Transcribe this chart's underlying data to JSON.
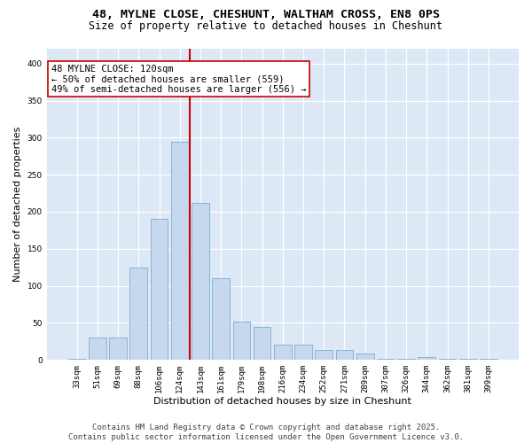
{
  "title_line1": "48, MYLNE CLOSE, CHESHUNT, WALTHAM CROSS, EN8 0PS",
  "title_line2": "Size of property relative to detached houses in Cheshunt",
  "xlabel": "Distribution of detached houses by size in Cheshunt",
  "ylabel": "Number of detached properties",
  "categories": [
    "33sqm",
    "51sqm",
    "69sqm",
    "88sqm",
    "106sqm",
    "124sqm",
    "143sqm",
    "161sqm",
    "179sqm",
    "198sqm",
    "216sqm",
    "234sqm",
    "252sqm",
    "271sqm",
    "289sqm",
    "307sqm",
    "326sqm",
    "344sqm",
    "362sqm",
    "381sqm",
    "399sqm"
  ],
  "values": [
    2,
    30,
    30,
    125,
    190,
    295,
    212,
    110,
    52,
    45,
    21,
    21,
    14,
    14,
    9,
    2,
    2,
    4,
    2,
    2,
    2
  ],
  "bar_color": "#c5d8ed",
  "bar_edge_color": "#7aadd4",
  "vline_color": "#cc0000",
  "vline_x": 5.5,
  "annotation_text": "48 MYLNE CLOSE: 120sqm\n← 50% of detached houses are smaller (559)\n49% of semi-detached houses are larger (556) →",
  "annotation_box_color": "#ffffff",
  "annotation_box_edge": "#cc0000",
  "ylim": [
    0,
    420
  ],
  "yticks": [
    0,
    50,
    100,
    150,
    200,
    250,
    300,
    350,
    400
  ],
  "grid_color": "#ffffff",
  "plot_bg_color": "#dce8f5",
  "footer_text": "Contains HM Land Registry data © Crown copyright and database right 2025.\nContains public sector information licensed under the Open Government Licence v3.0.",
  "title_fontsize": 9.5,
  "subtitle_fontsize": 8.5,
  "axis_label_fontsize": 8,
  "tick_fontsize": 6.5,
  "annotation_fontsize": 7.5,
  "footer_fontsize": 6.5
}
